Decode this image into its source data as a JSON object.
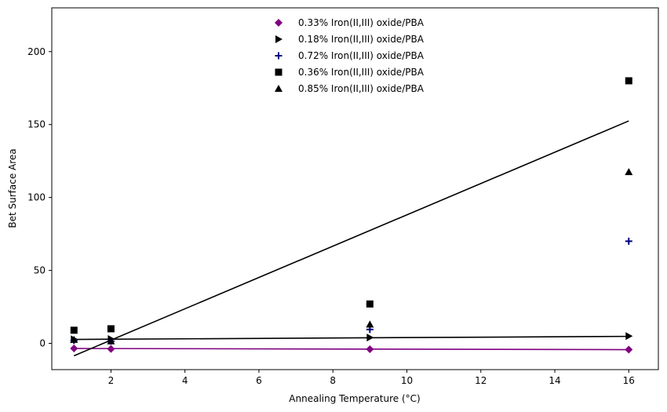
{
  "chart_data": {
    "type": "scatter",
    "xlabel": "Annealing Temperature (°C)",
    "ylabel": "Bet Surface Area",
    "xlim": [
      0.4,
      16.8
    ],
    "ylim": [
      -18,
      230
    ],
    "xticks": [
      2,
      4,
      6,
      8,
      10,
      12,
      14,
      16
    ],
    "yticks": [
      0,
      50,
      100,
      150,
      200
    ],
    "grid": false,
    "legend_position": "top-center",
    "series": [
      {
        "name": "0.33% Iron(II,III) oxide/PBA",
        "marker": "diamond",
        "color": "#800080",
        "x": [
          1,
          2,
          9,
          16
        ],
        "y": [
          -3.5,
          -3.8,
          -4.0,
          -4.3
        ],
        "fit": {
          "x": [
            1,
            16
          ],
          "y": [
            -3.5,
            -4.3
          ],
          "color": "#800080"
        }
      },
      {
        "name": "0.18% Iron(II,III) oxide/PBA",
        "marker": "triangle-right",
        "color": "#000000",
        "x": [
          1,
          2,
          9,
          16
        ],
        "y": [
          2.8,
          3.0,
          4.0,
          5.0
        ],
        "fit": {
          "x": [
            1,
            16
          ],
          "y": [
            2.7,
            4.8
          ],
          "color": "#000000"
        }
      },
      {
        "name": "0.72% Iron(II,III) oxide/PBA",
        "marker": "plus",
        "color": "#000080",
        "x": [
          1,
          2,
          9,
          16
        ],
        "y": [
          2.0,
          1.5,
          9.5,
          70.0
        ]
      },
      {
        "name": "0.36% Iron(II,III) oxide/PBA",
        "marker": "square",
        "color": "#000000",
        "x": [
          1,
          2,
          9,
          16
        ],
        "y": [
          9.0,
          10.0,
          27.0,
          180.0
        ],
        "fit": {
          "x": [
            1,
            16
          ],
          "y": [
            -8.5,
            152.5
          ],
          "color": "#000000"
        }
      },
      {
        "name": "0.85% Iron(II,III) oxide/PBA",
        "marker": "triangle-up",
        "color": "#000000",
        "x": [
          1,
          2,
          9,
          16
        ],
        "y": [
          2.5,
          1.5,
          13.0,
          117.5
        ]
      }
    ]
  }
}
